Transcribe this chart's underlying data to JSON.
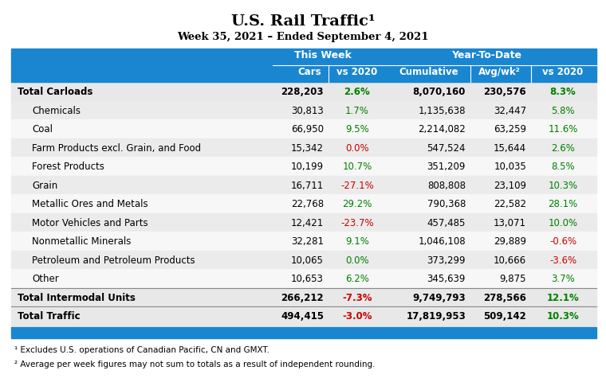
{
  "title": "U.S. Rail Traffic¹",
  "subtitle": "Week 35, 2021 – Ended September 4, 2021",
  "header_bg": "#1a86d0",
  "footnotes": [
    "¹ Excludes U.S. operations of Canadian Pacific, CN and GMXT.",
    "² Average per week figures may not sum to totals as a result of independent rounding."
  ],
  "rows": [
    {
      "label": "Total Carloads",
      "bold": true,
      "indent": false,
      "cars": "228,203",
      "tw_vs2020": "2.6%",
      "tw_color": "green",
      "cumulative": "8,070,160",
      "avg_wk": "230,576",
      "ytd_vs2020": "8.3%",
      "ytd_color": "green"
    },
    {
      "label": "Chemicals",
      "bold": false,
      "indent": true,
      "cars": "30,813",
      "tw_vs2020": "1.7%",
      "tw_color": "green",
      "cumulative": "1,135,638",
      "avg_wk": "32,447",
      "ytd_vs2020": "5.8%",
      "ytd_color": "green"
    },
    {
      "label": "Coal",
      "bold": false,
      "indent": true,
      "cars": "66,950",
      "tw_vs2020": "9.5%",
      "tw_color": "green",
      "cumulative": "2,214,082",
      "avg_wk": "63,259",
      "ytd_vs2020": "11.6%",
      "ytd_color": "green"
    },
    {
      "label": "Farm Products excl. Grain, and Food",
      "bold": false,
      "indent": true,
      "cars": "15,342",
      "tw_vs2020": "0.0%",
      "tw_color": "red",
      "cumulative": "547,524",
      "avg_wk": "15,644",
      "ytd_vs2020": "2.6%",
      "ytd_color": "green"
    },
    {
      "label": "Forest Products",
      "bold": false,
      "indent": true,
      "cars": "10,199",
      "tw_vs2020": "10.7%",
      "tw_color": "green",
      "cumulative": "351,209",
      "avg_wk": "10,035",
      "ytd_vs2020": "8.5%",
      "ytd_color": "green"
    },
    {
      "label": "Grain",
      "bold": false,
      "indent": true,
      "cars": "16,711",
      "tw_vs2020": "-27.1%",
      "tw_color": "red",
      "cumulative": "808,808",
      "avg_wk": "23,109",
      "ytd_vs2020": "10.3%",
      "ytd_color": "green"
    },
    {
      "label": "Metallic Ores and Metals",
      "bold": false,
      "indent": true,
      "cars": "22,768",
      "tw_vs2020": "29.2%",
      "tw_color": "green",
      "cumulative": "790,368",
      "avg_wk": "22,582",
      "ytd_vs2020": "28.1%",
      "ytd_color": "green"
    },
    {
      "label": "Motor Vehicles and Parts",
      "bold": false,
      "indent": true,
      "cars": "12,421",
      "tw_vs2020": "-23.7%",
      "tw_color": "red",
      "cumulative": "457,485",
      "avg_wk": "13,071",
      "ytd_vs2020": "10.0%",
      "ytd_color": "green"
    },
    {
      "label": "Nonmetallic Minerals",
      "bold": false,
      "indent": true,
      "cars": "32,281",
      "tw_vs2020": "9.1%",
      "tw_color": "green",
      "cumulative": "1,046,108",
      "avg_wk": "29,889",
      "ytd_vs2020": "-0.6%",
      "ytd_color": "red"
    },
    {
      "label": "Petroleum and Petroleum Products",
      "bold": false,
      "indent": true,
      "cars": "10,065",
      "tw_vs2020": "0.0%",
      "tw_color": "green",
      "cumulative": "373,299",
      "avg_wk": "10,666",
      "ytd_vs2020": "-3.6%",
      "ytd_color": "red"
    },
    {
      "label": "Other",
      "bold": false,
      "indent": true,
      "cars": "10,653",
      "tw_vs2020": "6.2%",
      "tw_color": "green",
      "cumulative": "345,639",
      "avg_wk": "9,875",
      "ytd_vs2020": "3.7%",
      "ytd_color": "green"
    },
    {
      "label": "Total Intermodal Units",
      "bold": true,
      "indent": false,
      "cars": "266,212",
      "tw_vs2020": "-7.3%",
      "tw_color": "red",
      "cumulative": "9,749,793",
      "avg_wk": "278,566",
      "ytd_vs2020": "12.1%",
      "ytd_color": "green"
    },
    {
      "label": "Total Traffic",
      "bold": true,
      "indent": false,
      "cars": "494,415",
      "tw_vs2020": "-3.0%",
      "tw_color": "red",
      "cumulative": "17,819,953",
      "avg_wk": "509,142",
      "ytd_vs2020": "10.3%",
      "ytd_color": "green"
    }
  ]
}
